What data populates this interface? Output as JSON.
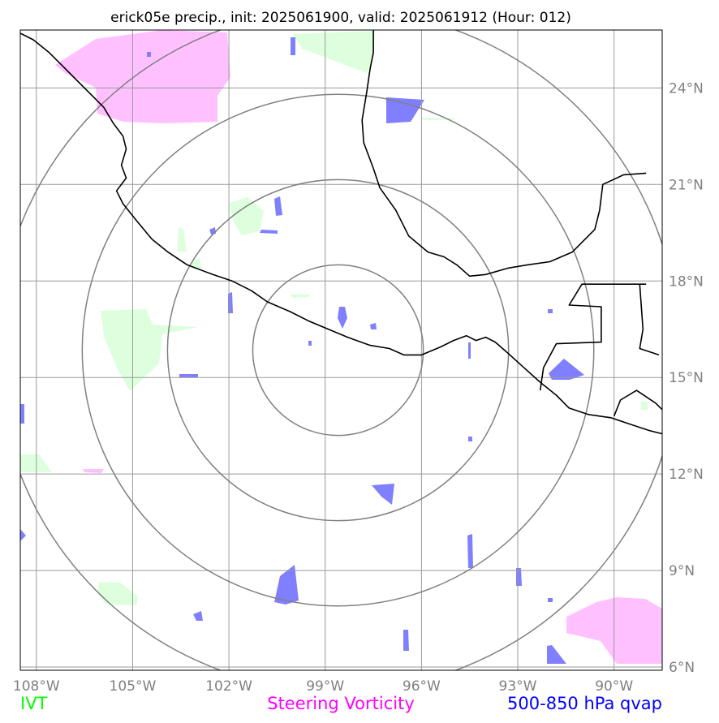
{
  "chart_data": {
    "type": "map",
    "title": "erick05e precip., init: 2025061900, valid: 2025061912 (Hour: 012)",
    "xlim": [
      -108.5,
      -88.5
    ],
    "ylim": [
      5.9,
      25.8
    ],
    "x_ticks": [
      {
        "value": -108,
        "label": "108°W"
      },
      {
        "value": -105,
        "label": "105°W"
      },
      {
        "value": -102,
        "label": "102°W"
      },
      {
        "value": -99,
        "label": "99°W"
      },
      {
        "value": -96,
        "label": "96°W"
      },
      {
        "value": -93,
        "label": "93°W"
      },
      {
        "value": -90,
        "label": "90°W"
      }
    ],
    "y_ticks": [
      {
        "value": 24,
        "label": "24°N"
      },
      {
        "value": 21,
        "label": "21°N"
      },
      {
        "value": 18,
        "label": "18°N"
      },
      {
        "value": 15,
        "label": "15°N"
      },
      {
        "value": 12,
        "label": "12°N"
      },
      {
        "value": 9,
        "label": "9°N"
      },
      {
        "value": 6,
        "label": "6°N"
      }
    ],
    "grid": true,
    "range_rings": {
      "center": {
        "lon": -98.6,
        "lat": 15.85
      },
      "radii_deg_lat": [
        2.65,
        5.3,
        7.95,
        10.6
      ]
    },
    "legend": [
      {
        "label": "IVT",
        "color": "#00ff00"
      },
      {
        "label": "Steering Vorticity",
        "color": "#ff00ff"
      },
      {
        "label": "500-850 hPa qvap",
        "color": "#0000ff"
      }
    ],
    "fill_colors": {
      "ivt": "#ddffdd",
      "vorticity": "#ffc0ff",
      "qvap": "#7f7fff"
    },
    "coastlines": [
      [
        [
          -108.5,
          25.7
        ],
        [
          -108.1,
          25.5
        ],
        [
          -107.6,
          25.1
        ],
        [
          -107.2,
          24.7
        ],
        [
          -106.8,
          24.3
        ],
        [
          -106.3,
          23.8
        ],
        [
          -105.9,
          23.4
        ],
        [
          -105.6,
          22.9
        ],
        [
          -105.3,
          22.5
        ],
        [
          -105.2,
          22.1
        ],
        [
          -105.35,
          21.6
        ],
        [
          -105.2,
          21.2
        ],
        [
          -105.5,
          20.8
        ],
        [
          -105.3,
          20.4
        ],
        [
          -104.9,
          19.9
        ],
        [
          -104.4,
          19.3
        ],
        [
          -103.9,
          18.9
        ],
        [
          -103.3,
          18.5
        ],
        [
          -102.5,
          18.2
        ],
        [
          -101.9,
          18.0
        ],
        [
          -101.3,
          17.7
        ],
        [
          -100.8,
          17.35
        ],
        [
          -100.1,
          17.05
        ],
        [
          -99.5,
          16.75
        ],
        [
          -98.9,
          16.5
        ],
        [
          -98.3,
          16.25
        ],
        [
          -97.6,
          16.0
        ],
        [
          -97.0,
          15.9
        ],
        [
          -96.55,
          15.7
        ],
        [
          -96.0,
          15.7
        ],
        [
          -95.4,
          15.95
        ],
        [
          -95.0,
          16.15
        ],
        [
          -94.6,
          16.3
        ],
        [
          -94.3,
          16.15
        ],
        [
          -94.0,
          16.25
        ],
        [
          -93.7,
          16.1
        ],
        [
          -93.3,
          15.75
        ],
        [
          -92.8,
          15.3
        ],
        [
          -92.3,
          14.85
        ],
        [
          -91.8,
          14.45
        ],
        [
          -91.4,
          14.05
        ],
        [
          -90.8,
          13.85
        ],
        [
          -90.1,
          13.75
        ],
        [
          -89.5,
          13.55
        ],
        [
          -88.9,
          13.35
        ],
        [
          -88.5,
          13.25
        ]
      ],
      [
        [
          -89.0,
          21.35
        ],
        [
          -89.7,
          21.3
        ],
        [
          -90.35,
          21.0
        ],
        [
          -90.45,
          20.2
        ],
        [
          -90.6,
          19.6
        ],
        [
          -91.3,
          18.9
        ],
        [
          -92.0,
          18.6
        ],
        [
          -92.7,
          18.5
        ],
        [
          -93.3,
          18.4
        ],
        [
          -94.0,
          18.2
        ],
        [
          -94.5,
          18.15
        ],
        [
          -94.9,
          18.5
        ],
        [
          -95.3,
          18.75
        ],
        [
          -95.8,
          18.9
        ],
        [
          -96.4,
          19.4
        ],
        [
          -96.8,
          20.2
        ],
        [
          -97.3,
          20.9
        ],
        [
          -97.5,
          21.5
        ],
        [
          -97.8,
          22.3
        ],
        [
          -97.85,
          23.0
        ],
        [
          -97.7,
          23.9
        ],
        [
          -97.6,
          24.6
        ],
        [
          -97.5,
          25.1
        ],
        [
          -97.5,
          25.8
        ]
      ],
      [
        [
          -89.0,
          17.9
        ],
        [
          -90.1,
          17.9
        ],
        [
          -91.0,
          17.9
        ],
        [
          -91.4,
          17.25
        ],
        [
          -90.4,
          17.2
        ],
        [
          -90.4,
          16.1
        ],
        [
          -91.8,
          16.05
        ],
        [
          -92.2,
          15.3
        ],
        [
          -92.3,
          14.6
        ]
      ],
      [
        [
          -89.2,
          17.9
        ],
        [
          -89.1,
          16.5
        ],
        [
          -89.2,
          15.9
        ],
        [
          -88.6,
          15.7
        ]
      ],
      [
        [
          -90.0,
          13.8
        ],
        [
          -89.8,
          14.3
        ],
        [
          -89.3,
          14.6
        ],
        [
          -88.7,
          14.2
        ],
        [
          -88.5,
          14.0
        ]
      ]
    ]
  }
}
